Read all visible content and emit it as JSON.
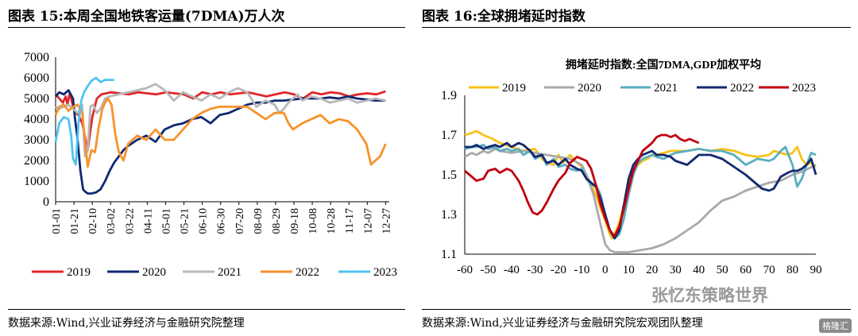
{
  "left_panel": {
    "title": "图表 15:本周全国地铁客运量(7DMA)万人次",
    "source": "数据来源:Wind,兴业证券经济与金融研究院整理"
  },
  "right_panel": {
    "title": "图表 16:全球拥堵延时指数",
    "source": "数据来源:Wind,兴业证券经济与金融研究院宏观团队整理"
  },
  "watermark": {
    "text": "张忆东策略世界",
    "badge": "格隆汇"
  },
  "chart_data": [
    {
      "type": "line",
      "title": "",
      "ylim": [
        0,
        7000
      ],
      "yticks": [
        0,
        1000,
        2000,
        3000,
        4000,
        5000,
        6000,
        7000
      ],
      "xticks": [
        "01-01",
        "01-21",
        "02-10",
        "03-02",
        "03-22",
        "04-11",
        "05-01",
        "05-21",
        "06-10",
        "06-30",
        "07-20",
        "08-09",
        "08-29",
        "09-18",
        "10-08",
        "10-28",
        "11-17",
        "12-07",
        "12-27"
      ],
      "legend_position": "bottom",
      "series": [
        {
          "name": "2019",
          "color": "#e0262a",
          "x": [
            1,
            5,
            9,
            12,
            14,
            16,
            18,
            20,
            23,
            26,
            30,
            36,
            41,
            46,
            51,
            61,
            71,
            81,
            91,
            101,
            111,
            121,
            131,
            141,
            151,
            161,
            171,
            181,
            191,
            201,
            211,
            221,
            231,
            241,
            251,
            261,
            271,
            281,
            291,
            301,
            311,
            321,
            331,
            341,
            351,
            361
          ],
          "y": [
            5200,
            5000,
            4800,
            5100,
            4700,
            5200,
            5000,
            4600,
            4300,
            4200,
            3800,
            2500,
            4100,
            5000,
            5200,
            5300,
            5250,
            5200,
            5300,
            5250,
            5200,
            5300,
            5250,
            5200,
            5000,
            5300,
            5200,
            5300,
            5200,
            5250,
            5300,
            5200,
            5100,
            5200,
            5300,
            5200,
            5000,
            5300,
            5200,
            5300,
            5250,
            5100,
            5200,
            5250,
            5200,
            5350
          ]
        },
        {
          "name": "2020",
          "color": "#0f2a70",
          "x": [
            1,
            5,
            10,
            15,
            20,
            22,
            25,
            28,
            31,
            33,
            36,
            40,
            45,
            50,
            55,
            60,
            65,
            70,
            75,
            80,
            90,
            100,
            110,
            120,
            130,
            140,
            150,
            160,
            170,
            180,
            190,
            200,
            210,
            220,
            230,
            240,
            250,
            260,
            270,
            280,
            290,
            300,
            310,
            320,
            330,
            340,
            350,
            361
          ],
          "y": [
            5100,
            5300,
            5200,
            5400,
            5000,
            4100,
            3000,
            1500,
            600,
            500,
            400,
            400,
            450,
            600,
            1000,
            1500,
            1900,
            2200,
            2500,
            2700,
            3000,
            3200,
            2900,
            3500,
            3700,
            3800,
            4000,
            4100,
            3800,
            4200,
            4300,
            4500,
            4700,
            4800,
            4800,
            4900,
            4900,
            4950,
            5000,
            5000,
            5000,
            5050,
            5000,
            5100,
            5000,
            4950,
            4900,
            4900
          ]
        },
        {
          "name": "2021",
          "color": "#b8b8b8",
          "x": [
            1,
            5,
            10,
            15,
            20,
            25,
            30,
            33,
            36,
            39,
            42,
            46,
            50,
            55,
            60,
            70,
            80,
            90,
            100,
            110,
            120,
            130,
            140,
            150,
            160,
            170,
            180,
            190,
            200,
            210,
            220,
            230,
            240,
            245,
            250,
            255,
            260,
            265,
            270,
            280,
            290,
            300,
            310,
            320,
            330,
            340,
            350,
            361
          ],
          "y": [
            4600,
            4500,
            4600,
            4700,
            4500,
            4300,
            4700,
            2200,
            2500,
            4600,
            4700,
            4300,
            4500,
            5000,
            5100,
            5200,
            5300,
            5400,
            5500,
            5700,
            5400,
            4900,
            5300,
            5100,
            4900,
            5200,
            5000,
            5300,
            5500,
            5300,
            4600,
            4900,
            4700,
            4300,
            4500,
            4800,
            5000,
            5200,
            4900,
            5100,
            5000,
            4800,
            4900,
            5000,
            4800,
            4900,
            5000,
            4900
          ]
        },
        {
          "name": "2022",
          "color": "#f7922c",
          "x": [
            1,
            5,
            10,
            15,
            20,
            25,
            30,
            33,
            36,
            40,
            44,
            48,
            52,
            55,
            58,
            62,
            66,
            70,
            75,
            80,
            90,
            100,
            110,
            120,
            130,
            140,
            150,
            160,
            170,
            180,
            190,
            200,
            210,
            220,
            230,
            240,
            250,
            255,
            260,
            270,
            280,
            290,
            300,
            310,
            320,
            330,
            340,
            345,
            350,
            355,
            361
          ],
          "y": [
            4200,
            4600,
            4700,
            4400,
            4600,
            4700,
            4300,
            3000,
            1700,
            2500,
            2400,
            3600,
            4500,
            4800,
            5000,
            4700,
            3300,
            2400,
            2000,
            2800,
            3200,
            3000,
            3500,
            3000,
            3000,
            3500,
            4000,
            4300,
            4500,
            4600,
            4600,
            4600,
            4600,
            4300,
            4000,
            4300,
            4300,
            3800,
            3500,
            3800,
            4000,
            4200,
            3800,
            4000,
            3900,
            3500,
            2800,
            1800,
            2000,
            2200,
            2800
          ]
        },
        {
          "name": "2023",
          "color": "#4fc4f0",
          "x": [
            1,
            5,
            10,
            15,
            18,
            20,
            23,
            26,
            29,
            32,
            36,
            40,
            45,
            50,
            55,
            60,
            65
          ],
          "y": [
            2900,
            3800,
            4100,
            4000,
            3200,
            2100,
            1800,
            3800,
            4900,
            5300,
            5600,
            5850,
            6000,
            5800,
            5900,
            5900,
            5900
          ]
        }
      ]
    },
    {
      "type": "line",
      "title": "拥堵延时指数:全国7DMA,GDP加权平均",
      "xlim": [
        -60,
        90
      ],
      "ylim": [
        1.1,
        1.9
      ],
      "xticks": [
        -60,
        -50,
        -40,
        -30,
        -20,
        -10,
        0,
        10,
        20,
        30,
        40,
        50,
        60,
        70,
        80,
        90
      ],
      "yticks": [
        1.1,
        1.3,
        1.5,
        1.7,
        1.9
      ],
      "legend_position": "top",
      "series": [
        {
          "name": "2019",
          "color": "#f7c21a",
          "x": [
            -60,
            -57,
            -55,
            -52,
            -48,
            -45,
            -40,
            -35,
            -30,
            -27,
            -25,
            -22,
            -20,
            -18,
            -15,
            -12,
            -10,
            -8,
            -6,
            -4,
            -2,
            0,
            2,
            3,
            4,
            6,
            8,
            10,
            12,
            14,
            16,
            18,
            20,
            22,
            25,
            28,
            30,
            35,
            40,
            45,
            50,
            55,
            60,
            65,
            70,
            72,
            75,
            78,
            80,
            82,
            84,
            86,
            88,
            90
          ],
          "y": [
            1.7,
            1.71,
            1.72,
            1.7,
            1.68,
            1.66,
            1.64,
            1.62,
            1.63,
            1.58,
            1.56,
            1.55,
            1.6,
            1.56,
            1.6,
            1.56,
            1.54,
            1.5,
            1.45,
            1.4,
            1.33,
            1.27,
            1.2,
            1.18,
            1.2,
            1.26,
            1.35,
            1.45,
            1.52,
            1.55,
            1.57,
            1.58,
            1.6,
            1.6,
            1.61,
            1.62,
            1.62,
            1.62,
            1.63,
            1.62,
            1.63,
            1.62,
            1.6,
            1.59,
            1.6,
            1.62,
            1.61,
            1.6,
            1.61,
            1.64,
            1.58,
            1.55,
            1.56,
            1.54
          ]
        },
        {
          "name": "2020",
          "color": "#a9a9a9",
          "x": [
            -60,
            -57,
            -55,
            -52,
            -50,
            -47,
            -45,
            -40,
            -35,
            -30,
            -25,
            -20,
            -15,
            -10,
            -8,
            -5,
            -2,
            0,
            2,
            4,
            6,
            10,
            15,
            20,
            25,
            30,
            35,
            40,
            45,
            50,
            55,
            60,
            65,
            70,
            75,
            80,
            85,
            90
          ],
          "y": [
            1.59,
            1.61,
            1.6,
            1.62,
            1.61,
            1.63,
            1.62,
            1.61,
            1.62,
            1.61,
            1.6,
            1.59,
            1.58,
            1.55,
            1.5,
            1.4,
            1.25,
            1.15,
            1.12,
            1.11,
            1.11,
            1.11,
            1.12,
            1.13,
            1.15,
            1.18,
            1.22,
            1.26,
            1.32,
            1.37,
            1.39,
            1.42,
            1.44,
            1.46,
            1.47,
            1.5,
            1.52,
            1.55
          ]
        },
        {
          "name": "2021",
          "color": "#5aaec0",
          "x": [
            -60,
            -57,
            -55,
            -52,
            -50,
            -47,
            -45,
            -42,
            -40,
            -37,
            -35,
            -32,
            -30,
            -27,
            -25,
            -22,
            -20,
            -17,
            -15,
            -12,
            -10,
            -8,
            -6,
            -4,
            -2,
            0,
            2,
            4,
            6,
            8,
            10,
            12,
            14,
            16,
            18,
            20,
            22,
            25,
            28,
            30,
            35,
            40,
            45,
            50,
            55,
            60,
            65,
            70,
            72,
            75,
            77,
            80,
            82,
            84,
            86,
            88,
            90
          ],
          "y": [
            1.63,
            1.64,
            1.64,
            1.65,
            1.63,
            1.64,
            1.62,
            1.63,
            1.62,
            1.63,
            1.6,
            1.62,
            1.58,
            1.6,
            1.55,
            1.58,
            1.54,
            1.55,
            1.53,
            1.52,
            1.53,
            1.48,
            1.45,
            1.45,
            1.4,
            1.3,
            1.22,
            1.18,
            1.2,
            1.28,
            1.4,
            1.5,
            1.56,
            1.58,
            1.59,
            1.6,
            1.59,
            1.58,
            1.6,
            1.61,
            1.62,
            1.63,
            1.62,
            1.62,
            1.6,
            1.55,
            1.58,
            1.57,
            1.58,
            1.62,
            1.64,
            1.55,
            1.44,
            1.48,
            1.55,
            1.61,
            1.6
          ]
        },
        {
          "name": "2022",
          "color": "#13286f",
          "x": [
            -60,
            -57,
            -55,
            -52,
            -50,
            -47,
            -45,
            -42,
            -40,
            -37,
            -35,
            -32,
            -30,
            -27,
            -25,
            -22,
            -20,
            -17,
            -15,
            -12,
            -10,
            -8,
            -6,
            -4,
            -2,
            0,
            2,
            4,
            6,
            8,
            10,
            12,
            14,
            16,
            18,
            20,
            22,
            25,
            28,
            30,
            35,
            40,
            45,
            50,
            55,
            60,
            63,
            65,
            67,
            70,
            72,
            75,
            78,
            80,
            82,
            84,
            86,
            88,
            90
          ],
          "y": [
            1.64,
            1.64,
            1.65,
            1.63,
            1.64,
            1.65,
            1.64,
            1.66,
            1.64,
            1.66,
            1.65,
            1.62,
            1.59,
            1.6,
            1.56,
            1.57,
            1.55,
            1.58,
            1.55,
            1.53,
            1.52,
            1.48,
            1.46,
            1.44,
            1.38,
            1.3,
            1.22,
            1.18,
            1.22,
            1.35,
            1.48,
            1.55,
            1.58,
            1.6,
            1.61,
            1.62,
            1.6,
            1.6,
            1.59,
            1.57,
            1.55,
            1.6,
            1.6,
            1.58,
            1.54,
            1.5,
            1.47,
            1.45,
            1.43,
            1.42,
            1.43,
            1.49,
            1.51,
            1.52,
            1.52,
            1.53,
            1.55,
            1.58,
            1.5
          ]
        },
        {
          "name": "2023",
          "color": "#c00010",
          "x": [
            -60,
            -58,
            -55,
            -52,
            -50,
            -47,
            -45,
            -42,
            -40,
            -37,
            -35,
            -33,
            -31,
            -29,
            -27,
            -25,
            -22,
            -20,
            -17,
            -15,
            -12,
            -10,
            -8,
            -6,
            -4,
            -2,
            0,
            2,
            4,
            6,
            8,
            10,
            12,
            14,
            16,
            18,
            20,
            22,
            24,
            26,
            28,
            30,
            32,
            34,
            36,
            38,
            40
          ],
          "y": [
            1.52,
            1.5,
            1.47,
            1.48,
            1.52,
            1.53,
            1.51,
            1.53,
            1.52,
            1.47,
            1.42,
            1.36,
            1.31,
            1.3,
            1.32,
            1.36,
            1.43,
            1.47,
            1.51,
            1.56,
            1.59,
            1.58,
            1.57,
            1.53,
            1.45,
            1.35,
            1.28,
            1.22,
            1.19,
            1.24,
            1.33,
            1.43,
            1.52,
            1.57,
            1.62,
            1.64,
            1.66,
            1.69,
            1.7,
            1.7,
            1.69,
            1.7,
            1.68,
            1.67,
            1.68,
            1.67,
            1.66
          ]
        }
      ]
    }
  ]
}
